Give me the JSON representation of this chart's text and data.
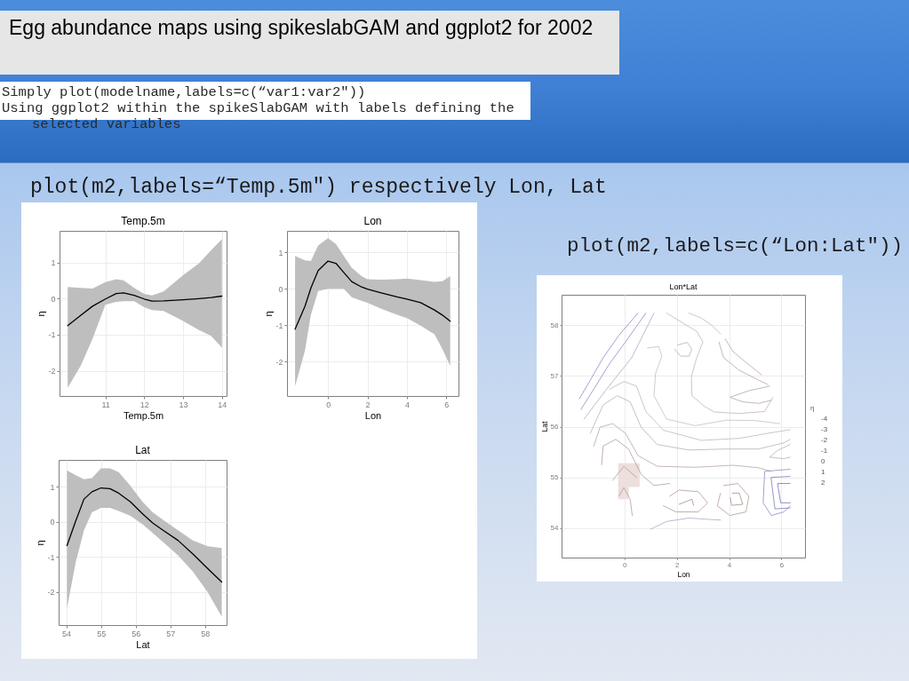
{
  "chart_data": [
    {
      "type": "other",
      "title": "Egg abundance maps using spikeslabGAM and ggplot2 for 2002",
      "annotations": [
        "Simply plot(modelname,labels=c(“var1:var2\"))",
        "Using ggplot2 within the spikeSlabGAM with labels defining the selected variables",
        "plot(m2,labels=“Temp.5m\") respectively Lon, Lat",
        "plot(m2,labels=c(“Lon:Lat\"))"
      ]
    },
    {
      "type": "line",
      "title": "Temp.5m",
      "xlabel": "Temp.5m",
      "ylabel": "η",
      "x": [
        10.03,
        10.37,
        10.67,
        11.0,
        11.28,
        11.47,
        11.74,
        12.0,
        12.2,
        12.5,
        13.0,
        13.41,
        13.72,
        14.0
      ],
      "series": [
        {
          "color": "#000000",
          "values": [
            -0.75,
            -0.46,
            -0.21,
            -0.01,
            0.14,
            0.16,
            0.09,
            -0.01,
            -0.07,
            -0.06,
            -0.03,
            0.0,
            0.03,
            0.07
          ],
          "lower": [
            -2.47,
            -1.85,
            -1.11,
            -0.17,
            -0.09,
            -0.07,
            -0.07,
            -0.24,
            -0.32,
            -0.34,
            -0.62,
            -0.87,
            -1.03,
            -1.36
          ],
          "upper": [
            0.32,
            0.3,
            0.28,
            0.46,
            0.54,
            0.51,
            0.3,
            0.13,
            0.09,
            0.2,
            0.65,
            0.98,
            1.34,
            1.65
          ]
        }
      ],
      "xlim": [
        9.82,
        14.12
      ],
      "xticks": [
        11,
        12,
        13,
        14
      ],
      "ylim": [
        -2.7,
        1.88
      ],
      "yticks": [
        -2,
        -1,
        0,
        1
      ],
      "grid": true
    },
    {
      "type": "line",
      "title": "Lon",
      "xlabel": "Lon",
      "ylabel": "η",
      "x": [
        -1.67,
        -1.17,
        -0.87,
        -0.5,
        0,
        0.4,
        0.8,
        1.2,
        1.7,
        2.0,
        2.7,
        3.5,
        4.0,
        4.7,
        5.4,
        5.8,
        6.2
      ],
      "series": [
        {
          "color": "#000000",
          "values": [
            -1.11,
            -0.48,
            0.02,
            0.5,
            0.76,
            0.7,
            0.45,
            0.2,
            0.05,
            -0.01,
            -0.11,
            -0.22,
            -0.28,
            -0.38,
            -0.58,
            -0.72,
            -0.89
          ],
          "lower": [
            -2.67,
            -1.7,
            -0.72,
            -0.06,
            0.0,
            0.0,
            0.0,
            -0.23,
            -0.33,
            -0.38,
            -0.55,
            -0.71,
            -0.8,
            -1.01,
            -1.25,
            -1.65,
            -2.11
          ],
          "upper": [
            0.9,
            0.78,
            0.76,
            1.19,
            1.39,
            1.23,
            0.9,
            0.58,
            0.35,
            0.26,
            0.25,
            0.26,
            0.28,
            0.24,
            0.19,
            0.21,
            0.35
          ]
        }
      ],
      "xlim": [
        -2.08,
        6.62
      ],
      "xticks": [
        0,
        2,
        4,
        6
      ],
      "ylim": [
        -2.94,
        1.59
      ],
      "yticks": [
        -2,
        -1,
        0,
        1
      ],
      "grid": true
    },
    {
      "type": "line",
      "title": "Lat",
      "xlabel": "Lat",
      "ylabel": "η",
      "x": [
        54.02,
        54.27,
        54.51,
        54.74,
        55.0,
        55.26,
        55.51,
        55.85,
        56.2,
        56.49,
        56.79,
        57.22,
        57.65,
        58.08,
        58.48
      ],
      "series": [
        {
          "color": "#000000",
          "values": [
            -0.68,
            0.02,
            0.65,
            0.86,
            0.97,
            0.95,
            0.82,
            0.57,
            0.23,
            -0.03,
            -0.24,
            -0.53,
            -0.92,
            -1.34,
            -1.72
          ],
          "lower": [
            -2.47,
            -1.17,
            -0.24,
            0.27,
            0.4,
            0.4,
            0.31,
            0.17,
            -0.07,
            -0.32,
            -0.58,
            -0.96,
            -1.42,
            -2.02,
            -2.71
          ],
          "upper": [
            1.47,
            1.33,
            1.22,
            1.25,
            1.53,
            1.53,
            1.42,
            1.03,
            0.57,
            0.27,
            0.06,
            -0.24,
            -0.53,
            -0.7,
            -0.75
          ]
        }
      ],
      "xlim": [
        53.78,
        58.62
      ],
      "xticks": [
        54,
        55,
        56,
        57,
        58
      ],
      "ylim": [
        -2.95,
        1.77
      ],
      "yticks": [
        -2,
        -1,
        0,
        1
      ],
      "grid": true
    },
    {
      "type": "line",
      "title": "Lon*Lat",
      "xlabel": "Lon",
      "ylabel": "Lat",
      "xlim": [
        -2.4,
        6.9
      ],
      "xticks": [
        0,
        2,
        4,
        6
      ],
      "ylim": [
        53.42,
        58.6
      ],
      "yticks": [
        54,
        55,
        56,
        57,
        58
      ],
      "grid": true,
      "legend_title": "η",
      "annotations": [
        "-4",
        "-3",
        "-2",
        "-1",
        "0",
        "1",
        "2"
      ],
      "series": [
        {
          "color": "#ecdfdc",
          "x": [
            -0.24,
            0.16,
            0.17,
            0.58
          ],
          "values": [
            null,
            null,
            null,
            null
          ],
          "lower": [
            54.57,
            54.57,
            54.81,
            54.81
          ],
          "upper": [
            55.28,
            55.28,
            55.28,
            55.28
          ]
        },
        {
          "color": "#8c8cc4",
          "x": [
            -1.72,
            -1.3,
            -0.81,
            -0.21,
            0.52
          ],
          "values": [
            56.55,
            56.92,
            57.36,
            57.8,
            58.24
          ]
        },
        {
          "color": "#8c8cc4",
          "x": [
            -1.66,
            -1.17,
            -0.57,
            0.04,
            0.82
          ],
          "values": [
            56.34,
            56.74,
            57.24,
            57.67,
            58.24
          ]
        },
        {
          "color": "#a9a9c6",
          "x": [
            -1.54,
            -1.05,
            -0.45,
            0.28,
            1.13
          ],
          "values": [
            56.15,
            56.49,
            56.89,
            57.36,
            58.24
          ]
        },
        {
          "color": "#c2b6b6",
          "x": [
            1.61,
            2.15,
            2.76,
            3.0,
            2.76,
            2.56,
            2.58,
            3.06,
            3.43,
            4.39,
            5.36,
            5.67
          ],
          "values": [
            58.24,
            58.07,
            57.88,
            57.67,
            57.36,
            56.99,
            56.61,
            56.4,
            56.29,
            56.26,
            56.3,
            56.58
          ]
        },
        {
          "color": "#bcaeae",
          "x": [
            2.03,
            2.4,
            2.58,
            2.46,
            2.15,
            1.91
          ],
          "values": [
            57.61,
            57.66,
            57.52,
            57.39,
            57.39,
            57.53
          ]
        },
        {
          "color": "#c2b6b6",
          "x": [
            2.46,
            2.94,
            3.31,
            3.67
          ],
          "values": [
            58.24,
            58.14,
            58.01,
            57.83
          ]
        },
        {
          "color": "#b8a6a6",
          "x": [
            3.61,
            3.79,
            4.39,
            5.12,
            5.48
          ],
          "values": [
            57.67,
            57.36,
            57.11,
            56.92,
            56.83
          ]
        },
        {
          "color": "#b8a6a6",
          "x": [
            3.85,
            4.15,
            4.64,
            5.24
          ],
          "values": [
            57.73,
            57.48,
            57.27,
            57.02
          ]
        },
        {
          "color": "#b8a6a6",
          "x": [
            5.55,
            4.76,
            4.03,
            4.52,
            5.12,
            5.61
          ],
          "values": [
            56.8,
            56.71,
            56.58,
            56.49,
            56.46,
            56.52
          ]
        },
        {
          "color": "#c8bebe",
          "x": [
            0.88,
            1.31,
            1.43,
            1.19,
            1.13,
            1.61,
            2.7,
            3.91,
            5.0,
            5.94
          ],
          "values": [
            57.55,
            57.58,
            57.39,
            57.05,
            56.61,
            56.15,
            56.02,
            56.13,
            56.12,
            56.06
          ]
        },
        {
          "color": "#c2b6b6",
          "x": [
            -0.57,
            -0.02,
            0.46,
            0.82,
            1.49,
            2.94,
            4.39,
            5.48,
            6.33
          ],
          "values": [
            56.74,
            56.89,
            56.8,
            56.3,
            55.93,
            55.73,
            55.77,
            55.87,
            55.94
          ]
        },
        {
          "color": "#bcaeae",
          "x": [
            -1.3,
            -0.81,
            -0.27,
            0.22,
            0.64,
            1.25,
            2.46,
            3.91,
            5.12,
            6.09,
            6.33
          ],
          "values": [
            55.87,
            56.43,
            56.61,
            56.49,
            55.99,
            55.65,
            55.54,
            55.56,
            55.56,
            55.68,
            55.75
          ]
        },
        {
          "color": "#b8a6a6",
          "x": [
            -1.17,
            -0.93,
            -0.45,
            0.04,
            0.52,
            1.25,
            2.7,
            4.15,
            5.12,
            5.61
          ],
          "values": [
            55.62,
            55.99,
            56.06,
            55.87,
            55.43,
            55.22,
            55.2,
            55.24,
            55.19,
            55.12
          ]
        },
        {
          "color": "#b39c9c",
          "x": [
            -0.87,
            -0.81,
            -0.33,
            0.16,
            0.64,
            1.13,
            1.73
          ],
          "values": [
            55.25,
            55.62,
            55.75,
            55.56,
            55.06,
            54.84,
            54.88
          ]
        },
        {
          "color": "#b39a98",
          "x": [
            1.73,
            2.09,
            2.82,
            3.18,
            2.82,
            1.97,
            1.49
          ],
          "values": [
            54.63,
            54.75,
            54.72,
            54.5,
            54.32,
            54.32,
            54.44
          ]
        },
        {
          "color": "#a88c8a",
          "x": [
            2.09,
            2.58,
            2.64
          ],
          "values": [
            54.47,
            54.57,
            54.45
          ]
        },
        {
          "color": "#b39a98",
          "x": [
            3.79,
            4.33,
            4.76,
            4.64,
            4.03,
            3.55,
            3.67
          ],
          "values": [
            54.84,
            54.88,
            54.63,
            54.32,
            54.25,
            54.44,
            54.69
          ]
        },
        {
          "color": "#a88c8a",
          "x": [
            4.12,
            4.39,
            4.52,
            4.09,
            4.05
          ],
          "values": [
            54.69,
            54.69,
            54.47,
            54.45,
            54.6
          ]
        },
        {
          "color": "#a9a9c6",
          "x": [
            1.0,
            1.61,
            2.46,
            3.31,
            3.67
          ],
          "values": [
            53.98,
            54.13,
            54.2,
            54.17,
            54.16
          ]
        },
        {
          "color": "#8c8cc4",
          "x": [
            6.33,
            5.36,
            5.3,
            5.61,
            6.09,
            6.33
          ],
          "values": [
            55.16,
            55.12,
            54.5,
            54.25,
            54.32,
            54.44
          ]
        },
        {
          "color": "#7a7abc",
          "x": [
            6.33,
            5.6,
            5.75,
            6.33
          ],
          "values": [
            55.02,
            55.0,
            54.38,
            54.4
          ]
        },
        {
          "color": "#6f6fb8",
          "x": [
            6.33,
            5.85,
            5.97,
            6.33
          ],
          "values": [
            54.88,
            54.88,
            54.5,
            54.5
          ]
        },
        {
          "color": "#bcaeae",
          "x": [
            6.33,
            5.85,
            5.55,
            6.09,
            6.33
          ],
          "values": [
            55.65,
            55.53,
            55.4,
            55.37,
            55.4
          ]
        },
        {
          "color": "#b39c9c",
          "x": [
            -0.45,
            -0.02,
            0.46
          ],
          "values": [
            54.94,
            55.22,
            55.0
          ]
        },
        {
          "color": "#b39c9c",
          "x": [
            -0.21,
            -0.02,
            0.22,
            0.3
          ],
          "values": [
            54.63,
            54.8,
            54.57,
            54.25
          ]
        }
      ]
    }
  ]
}
